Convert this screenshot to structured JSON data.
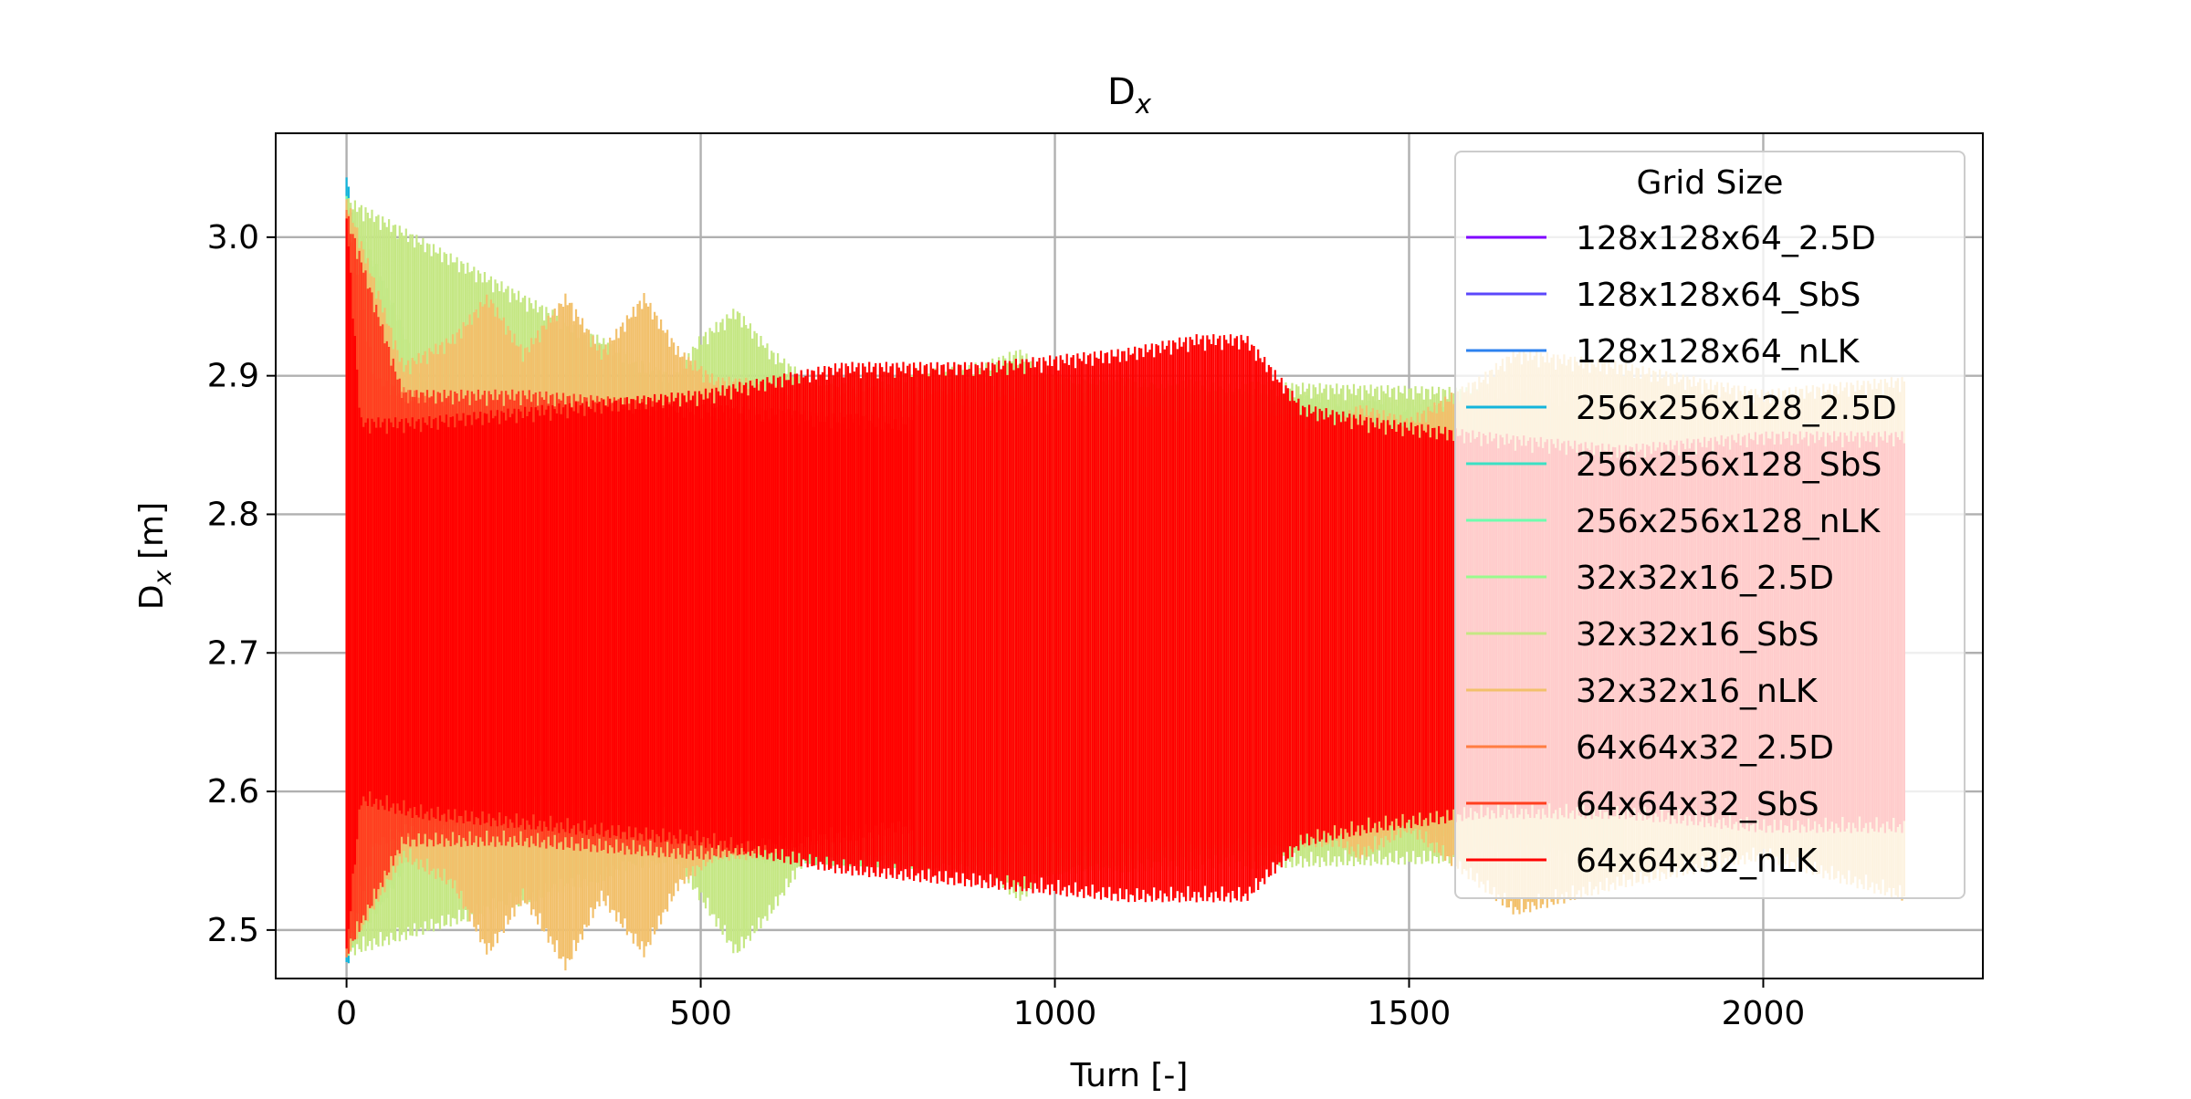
{
  "chart_data": {
    "type": "line",
    "title": "D",
    "title_subscript": "x",
    "xlabel": "Turn [-]",
    "ylabel": "D",
    "ylabel_subscript": "x",
    "ylabel_unit": " [m]",
    "xlim": [
      -100,
      2310
    ],
    "ylim": [
      2.465,
      3.075
    ],
    "xticks": [
      0,
      500,
      1000,
      1500,
      2000
    ],
    "xtick_labels": [
      "0",
      "500",
      "1000",
      "1500",
      "2000"
    ],
    "yticks": [
      2.5,
      2.6,
      2.7,
      2.8,
      2.9,
      3.0
    ],
    "ytick_labels": [
      "2.5",
      "2.6",
      "2.7",
      "2.8",
      "2.9",
      "3.0"
    ],
    "grid": true,
    "legend": {
      "title": "Grid Size",
      "placement": "upper right"
    },
    "series": [
      {
        "name": "128x128x64_2.5D",
        "color": "#7f00ff",
        "envelope": [
          [
            0,
            2.48,
            3.03
          ],
          [
            65,
            2.57,
            2.9
          ]
        ]
      },
      {
        "name": "128x128x64_SbS",
        "color": "#5b47fb",
        "envelope": [
          [
            0,
            2.48,
            3.03
          ],
          [
            65,
            2.57,
            2.9
          ]
        ]
      },
      {
        "name": "128x128x64_nLK",
        "color": "#2c81ef",
        "envelope": [
          [
            0,
            2.48,
            3.03
          ],
          [
            65,
            2.57,
            2.9
          ]
        ]
      },
      {
        "name": "256x256x128_2.5D",
        "color": "#14b5dc",
        "envelope": [
          [
            0,
            2.47,
            3.05
          ],
          [
            20,
            2.51,
            2.96
          ],
          [
            40,
            2.54,
            2.93
          ],
          [
            65,
            2.56,
            2.91
          ]
        ]
      },
      {
        "name": "256x256x128_SbS",
        "color": "#3ce0c4",
        "envelope": [
          [
            0,
            2.48,
            3.03
          ],
          [
            65,
            2.57,
            2.9
          ]
        ]
      },
      {
        "name": "256x256x128_nLK",
        "color": "#6ffdae",
        "envelope": [
          [
            0,
            2.48,
            3.03
          ],
          [
            65,
            2.57,
            2.9
          ]
        ]
      },
      {
        "name": "32x32x16_2.5D",
        "color": "#99fa8e",
        "envelope": [
          [
            0,
            2.48,
            3.03
          ],
          [
            120,
            2.57,
            2.89
          ],
          [
            500,
            2.55,
            2.88
          ],
          [
            1000,
            2.54,
            2.9
          ],
          [
            1500,
            2.57,
            2.88
          ],
          [
            1800,
            2.55,
            2.87
          ]
        ]
      },
      {
        "name": "32x32x16_SbS",
        "color": "#c5e784",
        "envelope": [
          [
            0,
            2.48,
            3.03
          ],
          [
            460,
            2.55,
            2.9
          ],
          [
            500,
            2.52,
            2.93
          ],
          [
            550,
            2.48,
            2.95
          ],
          [
            600,
            2.51,
            2.92
          ],
          [
            650,
            2.55,
            2.9
          ],
          [
            900,
            2.54,
            2.91
          ],
          [
            950,
            2.52,
            2.92
          ],
          [
            1000,
            2.54,
            2.9
          ],
          [
            1700,
            2.55,
            2.89
          ],
          [
            1780,
            2.56,
            2.88
          ]
        ]
      },
      {
        "name": "32x32x16_nLK",
        "color": "#f2c06b",
        "envelope": [
          [
            0,
            2.48,
            3.03
          ],
          [
            80,
            2.55,
            2.91
          ],
          [
            150,
            2.53,
            2.93
          ],
          [
            200,
            2.48,
            2.96
          ],
          [
            250,
            2.52,
            2.92
          ],
          [
            310,
            2.47,
            2.96
          ],
          [
            360,
            2.52,
            2.92
          ],
          [
            420,
            2.48,
            2.96
          ],
          [
            470,
            2.53,
            2.92
          ],
          [
            520,
            2.55,
            2.9
          ],
          [
            1400,
            2.56,
            2.87
          ],
          [
            1430,
            2.55,
            2.88
          ],
          [
            1500,
            2.57,
            2.87
          ],
          [
            1600,
            2.53,
            2.9
          ],
          [
            1650,
            2.51,
            2.92
          ],
          [
            1800,
            2.53,
            2.91
          ],
          [
            2000,
            2.55,
            2.89
          ],
          [
            2200,
            2.52,
            2.9
          ]
        ]
      },
      {
        "name": "64x64x32_2.5D",
        "color": "#ff7d42",
        "envelope": [
          [
            0,
            2.48,
            3.02
          ],
          [
            40,
            2.56,
            2.9
          ],
          [
            200,
            2.58,
            2.87
          ],
          [
            300,
            2.59,
            2.86
          ],
          [
            600,
            2.57,
            2.87
          ]
        ]
      },
      {
        "name": "64x64x32_SbS",
        "color": "#ff3f20",
        "envelope": [
          [
            0,
            2.48,
            3.02
          ],
          [
            80,
            2.56,
            2.89
          ],
          [
            250,
            2.56,
            2.89
          ],
          [
            500,
            2.55,
            2.88
          ],
          [
            800,
            2.57,
            2.87
          ]
        ]
      },
      {
        "name": "64x64x32_nLK",
        "color": "#ff0000",
        "envelope": [
          [
            0,
            2.48,
            3.02
          ],
          [
            20,
            2.59,
            2.87
          ],
          [
            100,
            2.58,
            2.87
          ],
          [
            300,
            2.57,
            2.88
          ],
          [
            500,
            2.56,
            2.89
          ],
          [
            700,
            2.54,
            2.91
          ],
          [
            900,
            2.53,
            2.91
          ],
          [
            1100,
            2.52,
            2.92
          ],
          [
            1200,
            2.52,
            2.93
          ],
          [
            1270,
            2.52,
            2.93
          ],
          [
            1350,
            2.56,
            2.88
          ],
          [
            1450,
            2.57,
            2.87
          ],
          [
            1600,
            2.58,
            2.86
          ],
          [
            1800,
            2.58,
            2.85
          ],
          [
            2000,
            2.57,
            2.86
          ],
          [
            2200,
            2.57,
            2.86
          ]
        ]
      }
    ]
  }
}
